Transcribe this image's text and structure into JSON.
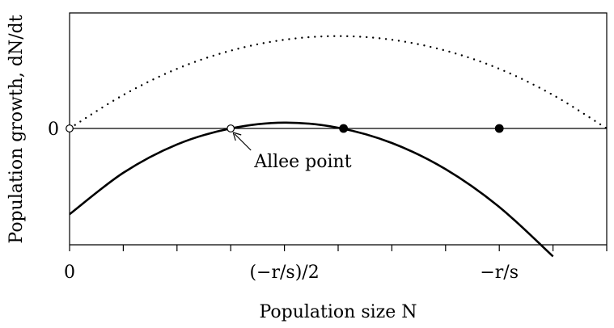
{
  "chart_data": {
    "type": "line",
    "xlabel": "Population size N",
    "ylabel": "Population growth, dN/dt",
    "xlim": [
      0,
      1
    ],
    "ylim": [
      -1.6,
      1.3
    ],
    "x_ticks": [
      0,
      0.1,
      0.2,
      0.3,
      0.4,
      0.5,
      0.6,
      0.7,
      0.8,
      0.9,
      1.0
    ],
    "x_tick_labels": [
      {
        "x": 0,
        "text": "0"
      },
      {
        "x": 0.4,
        "text": "(−r/s)/2"
      },
      {
        "x": 0.8,
        "text": "−r/s"
      }
    ],
    "y_tick_labels": [
      {
        "y": 0,
        "text": "0"
      }
    ],
    "series": [
      {
        "style": "dotted",
        "x": [
          0,
          0.1,
          0.2,
          0.3,
          0.4,
          0.5,
          0.6,
          0.7,
          0.8,
          0.9,
          1.0
        ],
        "y": [
          0,
          0.46,
          0.82,
          1.07,
          1.22,
          1.27,
          1.22,
          1.07,
          0.82,
          0.46,
          0
        ]
      },
      {
        "style": "solid",
        "x": [
          0,
          0.1,
          0.2,
          0.3,
          0.4,
          0.5,
          0.6,
          0.7,
          0.8,
          0.9
        ],
        "y": [
          -1.18,
          -0.61,
          -0.22,
          0,
          0.08,
          0.01,
          -0.2,
          -0.56,
          -1.08,
          -1.76
        ]
      }
    ],
    "points": [
      {
        "x": 0,
        "y": 0,
        "filled": false
      },
      {
        "x": 0.3,
        "y": 0,
        "filled": false
      },
      {
        "x": 0.51,
        "y": 0,
        "filled": true
      },
      {
        "x": 0.8,
        "y": 0,
        "filled": true
      }
    ],
    "annotations": [
      {
        "text": "Allee point",
        "target_x": 0.3,
        "target_y": 0
      }
    ],
    "grid": false,
    "legend": "none"
  }
}
